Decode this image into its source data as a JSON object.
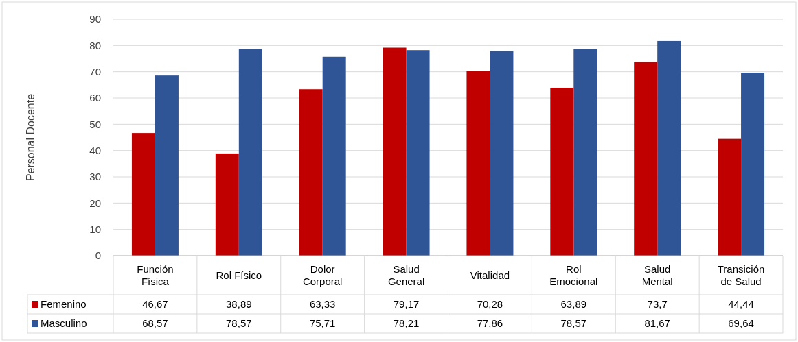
{
  "chart_data": {
    "type": "bar",
    "ylabel": "Personal Docente",
    "categories": [
      "Función Física",
      "Rol Físico",
      "Dolor Corporal",
      "Salud General",
      "Vitalidad",
      "Rol Emocional",
      "Salud Mental",
      "Transición de Salud"
    ],
    "series": [
      {
        "name": "Femenino",
        "color": "#c00000",
        "values": [
          46.67,
          38.89,
          63.33,
          79.17,
          70.28,
          63.89,
          73.7,
          44.44
        ],
        "value_labels": [
          "46,67",
          "38,89",
          "63,33",
          "79,17",
          "70,28",
          "63,89",
          "73,7",
          "44,44"
        ]
      },
      {
        "name": "Masculino",
        "color": "#2f5597",
        "values": [
          68.57,
          78.57,
          75.71,
          78.21,
          77.86,
          78.57,
          81.67,
          69.64
        ],
        "value_labels": [
          "68,57",
          "78,57",
          "75,71",
          "78,21",
          "77,86",
          "78,57",
          "81,67",
          "69,64"
        ]
      }
    ],
    "ylim": [
      0,
      90
    ],
    "yticks": [
      0,
      10,
      20,
      30,
      40,
      50,
      60,
      70,
      80,
      90
    ],
    "grid": "y",
    "legend": "bottom left"
  }
}
